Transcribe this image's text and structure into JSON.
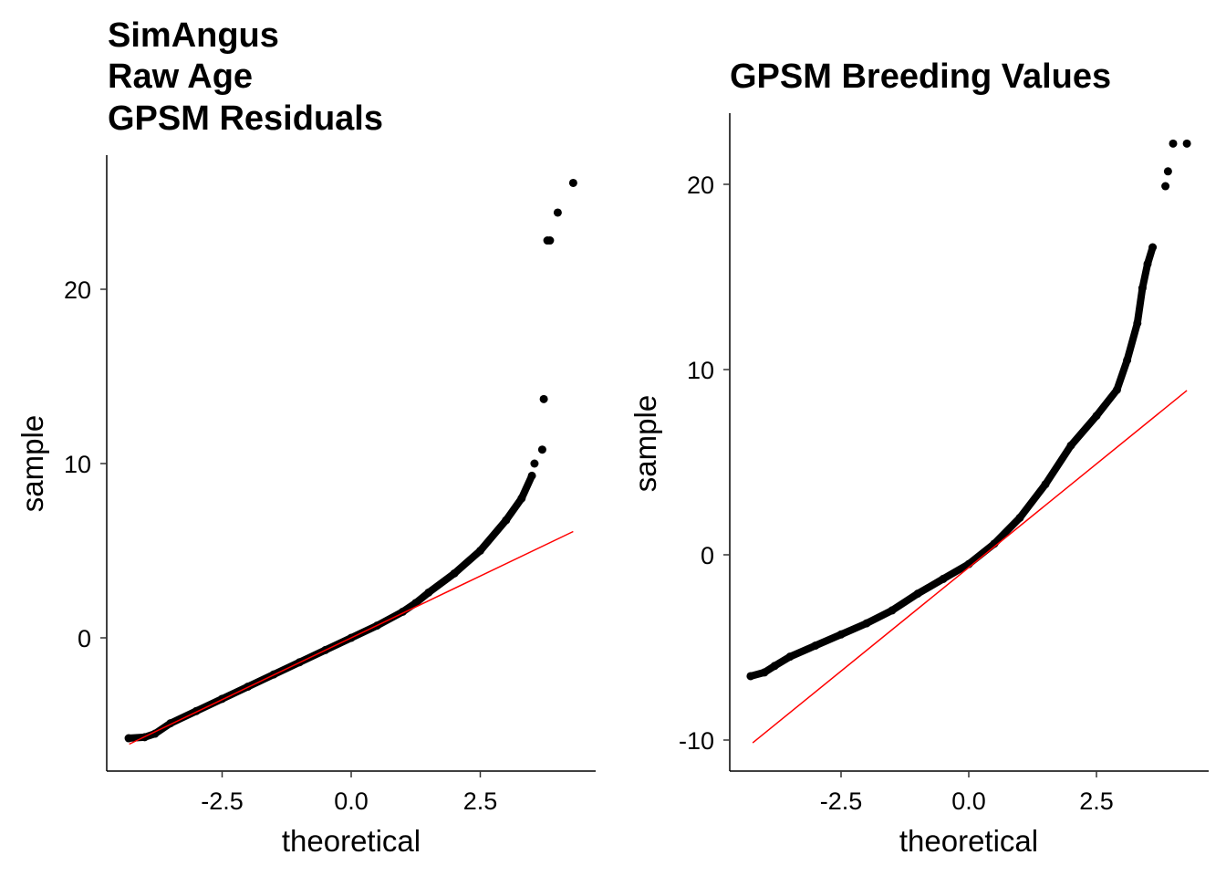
{
  "chart_data": [
    {
      "type": "scatter",
      "title_lines": [
        "SimAngus",
        "Raw Age",
        "GPSM Residuals"
      ],
      "xlabel": "theoretical",
      "ylabel": "sample",
      "xticks": [
        -2.5,
        0.0,
        2.5
      ],
      "xtick_labels": [
        "-2.5",
        "0.0",
        "2.5"
      ],
      "yticks": [
        0,
        10,
        20
      ],
      "ytick_labels": [
        "0",
        "10",
        "20"
      ],
      "xlim": [
        -4.6,
        4.8
      ],
      "ylim": [
        -7.6,
        27.8
      ],
      "grid": false,
      "points_color": "#000000",
      "line_color": "#FF0000",
      "reference_line": {
        "x": [
          -4.3,
          4.3
        ],
        "y": [
          -6.1,
          6.1
        ]
      },
      "points": [
        [
          -4.31,
          -5.76
        ],
        [
          -4.0,
          -5.7
        ],
        [
          -3.8,
          -5.5
        ],
        [
          -3.5,
          -4.9
        ],
        [
          -3.0,
          -4.2
        ],
        [
          -2.5,
          -3.5
        ],
        [
          -2.0,
          -2.8
        ],
        [
          -1.5,
          -2.1
        ],
        [
          -1.0,
          -1.4
        ],
        [
          -0.5,
          -0.7
        ],
        [
          0.0,
          0.0
        ],
        [
          0.5,
          0.7
        ],
        [
          1.0,
          1.5
        ],
        [
          1.25,
          2.0
        ],
        [
          1.5,
          2.6
        ],
        [
          2.0,
          3.7
        ],
        [
          2.5,
          5.0
        ],
        [
          3.0,
          6.75
        ],
        [
          3.3,
          8.0
        ],
        [
          3.5,
          9.3
        ],
        [
          3.55,
          10.0
        ],
        [
          3.7,
          10.8
        ],
        [
          3.73,
          13.7
        ],
        [
          3.8,
          22.8
        ],
        [
          3.85,
          22.8
        ],
        [
          4.0,
          24.4
        ],
        [
          4.3,
          26.1
        ]
      ]
    },
    {
      "type": "scatter",
      "title_lines": [
        "GPSM Breeding Values"
      ],
      "xlabel": "theoretical",
      "ylabel": "sample",
      "xticks": [
        -2.5,
        0.0,
        2.5
      ],
      "xtick_labels": [
        "-2.5",
        "0.0",
        "2.5"
      ],
      "yticks": [
        -10,
        0,
        10,
        20
      ],
      "ytick_labels": [
        "-10",
        "0",
        "10",
        "20"
      ],
      "xlim": [
        -4.5,
        4.7
      ],
      "ylim": [
        -11.7,
        23.9
      ],
      "grid": false,
      "points_color": "#000000",
      "line_color": "#FF0000",
      "reference_line": {
        "x": [
          -4.23,
          4.27
        ],
        "y": [
          -10.15,
          8.87
        ]
      },
      "points": [
        [
          -4.27,
          -6.55
        ],
        [
          -4.0,
          -6.35
        ],
        [
          -3.8,
          -6.0
        ],
        [
          -3.5,
          -5.5
        ],
        [
          -3.0,
          -4.9
        ],
        [
          -2.5,
          -4.3
        ],
        [
          -2.0,
          -3.7
        ],
        [
          -1.5,
          -3.0
        ],
        [
          -1.0,
          -2.1
        ],
        [
          -0.5,
          -1.3
        ],
        [
          0.0,
          -0.5
        ],
        [
          0.5,
          0.6
        ],
        [
          1.0,
          2.0
        ],
        [
          1.5,
          3.8
        ],
        [
          2.0,
          5.9
        ],
        [
          2.5,
          7.5
        ],
        [
          2.9,
          8.9
        ],
        [
          3.1,
          10.5
        ],
        [
          3.3,
          12.5
        ],
        [
          3.4,
          14.4
        ],
        [
          3.5,
          15.7
        ],
        [
          3.6,
          16.6
        ],
        [
          3.85,
          19.9
        ],
        [
          3.9,
          20.7
        ],
        [
          4.0,
          22.2
        ],
        [
          4.27,
          22.2
        ]
      ]
    }
  ]
}
